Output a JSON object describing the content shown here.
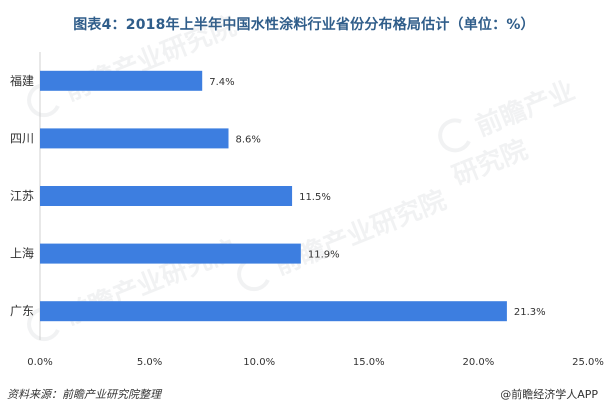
{
  "chart_data": {
    "type": "bar",
    "orientation": "horizontal",
    "title": "图表4：2018年上半年中国水性涂料行业省份分布格局估计（单位：%）",
    "categories": [
      "福建",
      "四川",
      "江苏",
      "上海",
      "广东"
    ],
    "values": [
      7.4,
      8.6,
      11.5,
      11.9,
      21.3
    ],
    "data_labels": [
      "7.4%",
      "8.6%",
      "11.5%",
      "11.9%",
      "21.3%"
    ],
    "xlim": [
      0,
      25
    ],
    "x_ticks": [
      "0.0%",
      "5.0%",
      "10.0%",
      "15.0%",
      "20.0%",
      "25.0%"
    ],
    "xlabel": "",
    "ylabel": "",
    "grid": false,
    "legend": "none",
    "bar_color": "#3d7ee0"
  },
  "footer": {
    "source": "资料来源：前瞻产业研究院整理",
    "brand": "@前瞻经济学人APP"
  },
  "watermark": {
    "text": "前瞻产业研究院"
  }
}
